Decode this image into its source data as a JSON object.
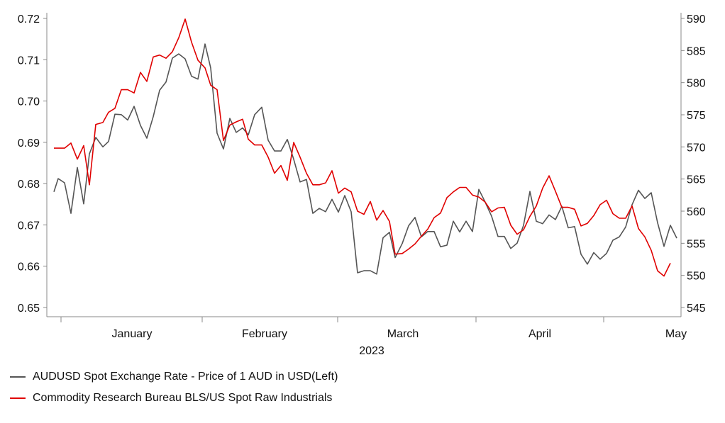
{
  "chart_data": {
    "type": "line",
    "title": "",
    "xlabel": "2023",
    "x_month_labels": [
      "January",
      "February",
      "March",
      "April",
      "May"
    ],
    "left_axis": {
      "ylim": [
        0.65,
        0.72
      ],
      "ticks": [
        "0.65",
        "0.66",
        "0.67",
        "0.68",
        "0.69",
        "0.70",
        "0.71",
        "0.72"
      ]
    },
    "right_axis": {
      "ylim": [
        545,
        590
      ],
      "ticks": [
        "545",
        "550",
        "555",
        "560",
        "565",
        "570",
        "575",
        "580",
        "585",
        "590"
      ]
    },
    "grid": false,
    "legend_position": "bottom-left",
    "series": [
      {
        "name": "AUDUSD Spot Exchange Rate - Price of 1 AUD in USD(Left)",
        "axis": "left",
        "color": "#555555",
        "values": [
          [
            76,
            0.678
          ],
          [
            82,
            0.6812
          ],
          [
            91,
            0.6802
          ],
          [
            100,
            0.6728
          ],
          [
            109,
            0.6839
          ],
          [
            118,
            0.6751
          ],
          [
            126,
            0.6872
          ],
          [
            135,
            0.6912
          ],
          [
            145,
            0.6889
          ],
          [
            153,
            0.6902
          ],
          [
            162,
            0.6968
          ],
          [
            171,
            0.6967
          ],
          [
            180,
            0.6954
          ],
          [
            189,
            0.6987
          ],
          [
            198,
            0.6941
          ],
          [
            207,
            0.691
          ],
          [
            216,
            0.6962
          ],
          [
            225,
            0.7026
          ],
          [
            234,
            0.7046
          ],
          [
            243,
            0.7104
          ],
          [
            252,
            0.7114
          ],
          [
            261,
            0.7102
          ],
          [
            270,
            0.706
          ],
          [
            279,
            0.7053
          ],
          [
            289,
            0.7138
          ],
          [
            297,
            0.708
          ],
          [
            306,
            0.6922
          ],
          [
            315,
            0.6884
          ],
          [
            324,
            0.6958
          ],
          [
            333,
            0.6924
          ],
          [
            342,
            0.6935
          ],
          [
            350,
            0.6918
          ],
          [
            359,
            0.6967
          ],
          [
            369,
            0.6985
          ],
          [
            378,
            0.6905
          ],
          [
            387,
            0.6879
          ],
          [
            396,
            0.6879
          ],
          [
            405,
            0.6907
          ],
          [
            414,
            0.6859
          ],
          [
            423,
            0.6804
          ],
          [
            432,
            0.681
          ],
          [
            441,
            0.6728
          ],
          [
            450,
            0.674
          ],
          [
            459,
            0.6732
          ],
          [
            468,
            0.6762
          ],
          [
            477,
            0.6731
          ],
          [
            486,
            0.6771
          ],
          [
            495,
            0.6732
          ],
          [
            504,
            0.6584
          ],
          [
            513,
            0.6589
          ],
          [
            522,
            0.6589
          ],
          [
            531,
            0.6581
          ],
          [
            540,
            0.6669
          ],
          [
            549,
            0.6682
          ],
          [
            557,
            0.6621
          ],
          [
            567,
            0.6655
          ],
          [
            576,
            0.6698
          ],
          [
            585,
            0.6718
          ],
          [
            594,
            0.6671
          ],
          [
            603,
            0.6684
          ],
          [
            612,
            0.6684
          ],
          [
            621,
            0.6647
          ],
          [
            630,
            0.6651
          ],
          [
            639,
            0.6709
          ],
          [
            648,
            0.6683
          ],
          [
            657,
            0.6709
          ],
          [
            666,
            0.6684
          ],
          [
            675,
            0.6786
          ],
          [
            684,
            0.6755
          ],
          [
            693,
            0.6721
          ],
          [
            702,
            0.6672
          ],
          [
            711,
            0.6672
          ],
          [
            720,
            0.6643
          ],
          [
            729,
            0.6656
          ],
          [
            738,
            0.6699
          ],
          [
            747,
            0.6781
          ],
          [
            756,
            0.6709
          ],
          [
            765,
            0.6703
          ],
          [
            774,
            0.6724
          ],
          [
            783,
            0.6713
          ],
          [
            792,
            0.6745
          ],
          [
            801,
            0.6693
          ],
          [
            810,
            0.6696
          ],
          [
            819,
            0.6629
          ],
          [
            828,
            0.6605
          ],
          [
            837,
            0.6633
          ],
          [
            846,
            0.6617
          ],
          [
            855,
            0.6631
          ],
          [
            864,
            0.6663
          ],
          [
            873,
            0.6671
          ],
          [
            882,
            0.6695
          ],
          [
            891,
            0.6749
          ],
          [
            900,
            0.6784
          ],
          [
            909,
            0.6764
          ],
          [
            918,
            0.6778
          ],
          [
            927,
            0.6705
          ],
          [
            936,
            0.6648
          ],
          [
            945,
            0.6699
          ],
          [
            954,
            0.6668
          ]
        ]
      },
      {
        "name": "Commodity Research Bureau BLS/US Spot Raw Industrials",
        "axis": "right",
        "color": "#e00000",
        "values": [
          [
            76,
            569.8
          ],
          [
            82,
            569.8
          ],
          [
            91,
            569.8
          ],
          [
            100,
            570.6
          ],
          [
            109,
            568.1
          ],
          [
            118,
            570.2
          ],
          [
            126,
            564.1
          ],
          [
            135,
            573.5
          ],
          [
            145,
            573.8
          ],
          [
            153,
            575.4
          ],
          [
            162,
            576.0
          ],
          [
            171,
            578.9
          ],
          [
            180,
            578.9
          ],
          [
            189,
            578.4
          ],
          [
            198,
            581.6
          ],
          [
            207,
            580.2
          ],
          [
            216,
            584.0
          ],
          [
            225,
            584.3
          ],
          [
            234,
            583.8
          ],
          [
            243,
            584.8
          ],
          [
            252,
            587.0
          ],
          [
            261,
            589.9
          ],
          [
            270,
            586.3
          ],
          [
            279,
            583.5
          ],
          [
            289,
            582.3
          ],
          [
            297,
            579.6
          ],
          [
            306,
            578.9
          ],
          [
            315,
            571.0
          ],
          [
            324,
            573.4
          ],
          [
            333,
            573.9
          ],
          [
            342,
            574.3
          ],
          [
            350,
            571.2
          ],
          [
            359,
            570.3
          ],
          [
            369,
            570.3
          ],
          [
            378,
            568.4
          ],
          [
            387,
            565.9
          ],
          [
            396,
            567.1
          ],
          [
            405,
            564.8
          ],
          [
            414,
            570.7
          ],
          [
            423,
            568.4
          ],
          [
            432,
            565.9
          ],
          [
            441,
            564.1
          ],
          [
            450,
            564.1
          ],
          [
            459,
            564.4
          ],
          [
            468,
            566.3
          ],
          [
            477,
            562.8
          ],
          [
            486,
            563.6
          ],
          [
            495,
            563.0
          ],
          [
            504,
            560.0
          ],
          [
            513,
            559.5
          ],
          [
            522,
            561.5
          ],
          [
            531,
            558.6
          ],
          [
            540,
            560.1
          ],
          [
            549,
            558.4
          ],
          [
            557,
            553.3
          ],
          [
            567,
            553.4
          ],
          [
            576,
            554.1
          ],
          [
            585,
            554.9
          ],
          [
            594,
            556.1
          ],
          [
            603,
            557.2
          ],
          [
            612,
            559.0
          ],
          [
            621,
            559.7
          ],
          [
            630,
            562.1
          ],
          [
            639,
            563.0
          ],
          [
            648,
            563.7
          ],
          [
            657,
            563.7
          ],
          [
            666,
            562.5
          ],
          [
            675,
            562.2
          ],
          [
            684,
            561.4
          ],
          [
            693,
            559.9
          ],
          [
            702,
            560.5
          ],
          [
            711,
            560.6
          ],
          [
            720,
            557.8
          ],
          [
            729,
            556.4
          ],
          [
            738,
            557.1
          ],
          [
            747,
            559.2
          ],
          [
            756,
            560.8
          ],
          [
            765,
            563.6
          ],
          [
            774,
            565.5
          ],
          [
            783,
            563.1
          ],
          [
            792,
            560.6
          ],
          [
            801,
            560.6
          ],
          [
            810,
            560.3
          ],
          [
            819,
            557.7
          ],
          [
            828,
            558.1
          ],
          [
            837,
            559.3
          ],
          [
            846,
            561.0
          ],
          [
            855,
            561.7
          ],
          [
            864,
            559.6
          ],
          [
            873,
            558.9
          ],
          [
            882,
            558.9
          ],
          [
            891,
            560.8
          ],
          [
            900,
            557.3
          ],
          [
            909,
            556.0
          ],
          [
            918,
            553.9
          ],
          [
            927,
            550.7
          ],
          [
            936,
            549.9
          ],
          [
            945,
            551.9
          ]
        ]
      }
    ]
  }
}
